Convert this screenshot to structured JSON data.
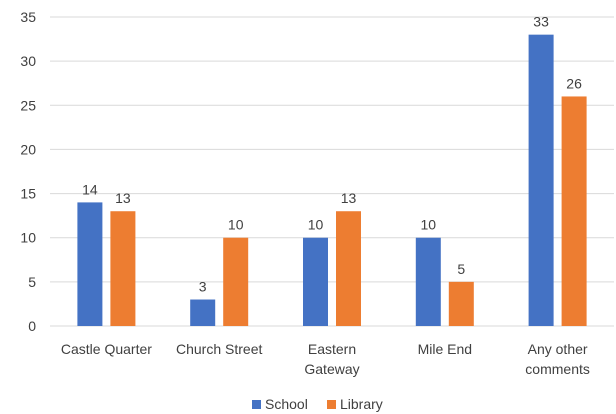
{
  "chart_data": {
    "type": "bar",
    "categories": [
      [
        "Castle Quarter"
      ],
      [
        "Church Street"
      ],
      [
        "Eastern",
        "Gateway"
      ],
      [
        "Mile End"
      ],
      [
        "Any other",
        "comments"
      ]
    ],
    "series": [
      {
        "name": "School",
        "color": "#4472c4",
        "values": [
          14,
          3,
          10,
          10,
          33
        ]
      },
      {
        "name": "Library",
        "color": "#ed7d31",
        "values": [
          13,
          10,
          13,
          5,
          26
        ]
      }
    ],
    "ylim": [
      0,
      35
    ],
    "yticks": [
      0,
      5,
      10,
      15,
      20,
      25,
      30,
      35
    ],
    "grid": true,
    "data_labels": true,
    "legend_position": "bottom"
  }
}
